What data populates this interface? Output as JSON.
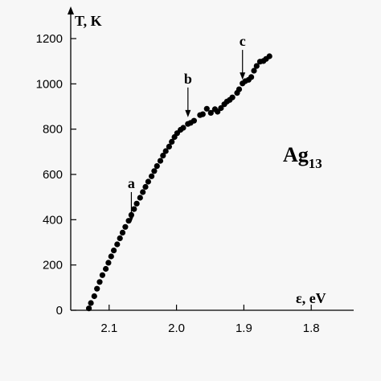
{
  "chart_data": {
    "type": "scatter",
    "x_label": "ε, eV",
    "y_label": "T, K",
    "species_base": "Ag",
    "species_subscript": "13",
    "x_reversed": true,
    "xlim": [
      2.157,
      1.737
    ],
    "ylim": [
      0,
      1270
    ],
    "x_ticks": [
      2.1,
      2.0,
      1.9,
      1.8
    ],
    "x_tick_labels": [
      "2.1",
      "2.0",
      "1.9",
      "1.8"
    ],
    "y_ticks": [
      0,
      200,
      400,
      600,
      800,
      1000,
      1200
    ],
    "y_tick_labels": [
      "0",
      "200",
      "400",
      "600",
      "800",
      "1000",
      "1200"
    ],
    "series": [
      {
        "points": [
          [
            2.13,
            8
          ],
          [
            2.127,
            32
          ],
          [
            2.122,
            62
          ],
          [
            2.118,
            95
          ],
          [
            2.114,
            125
          ],
          [
            2.11,
            155
          ],
          [
            2.105,
            183
          ],
          [
            2.101,
            210
          ],
          [
            2.097,
            238
          ],
          [
            2.093,
            264
          ],
          [
            2.088,
            291
          ],
          [
            2.084,
            318
          ],
          [
            2.08,
            343
          ],
          [
            2.076,
            368
          ],
          [
            2.071,
            395
          ],
          [
            2.067,
            421
          ],
          [
            2.063,
            447
          ],
          [
            2.059,
            471
          ],
          [
            2.054,
            497
          ],
          [
            2.05,
            522
          ],
          [
            2.046,
            545
          ],
          [
            2.042,
            568
          ],
          [
            2.037,
            592
          ],
          [
            2.033,
            615
          ],
          [
            2.029,
            637
          ],
          [
            2.024,
            660
          ],
          [
            2.02,
            683
          ],
          [
            2.016,
            703
          ],
          [
            2.011,
            723
          ],
          [
            2.007,
            744
          ],
          [
            2.003,
            765
          ],
          [
            1.999,
            782
          ],
          [
            1.994,
            797
          ],
          [
            1.99,
            806
          ],
          [
            1.983,
            823
          ],
          [
            1.979,
            828
          ],
          [
            1.974,
            837
          ],
          [
            1.965,
            862
          ],
          [
            1.961,
            866
          ],
          [
            1.955,
            890
          ],
          [
            1.949,
            872
          ],
          [
            1.943,
            888
          ],
          [
            1.939,
            877
          ],
          [
            1.934,
            893
          ],
          [
            1.929,
            910
          ],
          [
            1.925,
            922
          ],
          [
            1.921,
            929
          ],
          [
            1.917,
            940
          ],
          [
            1.91,
            960
          ],
          [
            1.907,
            976
          ],
          [
            1.902,
            1002
          ],
          [
            1.898,
            1012
          ],
          [
            1.893,
            1018
          ],
          [
            1.889,
            1030
          ],
          [
            1.885,
            1058
          ],
          [
            1.881,
            1079
          ],
          [
            1.876,
            1098
          ],
          [
            1.871,
            1101
          ],
          [
            1.867,
            1110
          ],
          [
            1.862,
            1122
          ]
        ]
      }
    ],
    "annotations": [
      {
        "label": "a",
        "x": 2.067,
        "y": 380
      },
      {
        "label": "b",
        "x": 1.983,
        "y": 842
      },
      {
        "label": "c",
        "x": 1.902,
        "y": 1008
      }
    ],
    "marker_color": "#000000",
    "background": "#f7f7f7"
  }
}
